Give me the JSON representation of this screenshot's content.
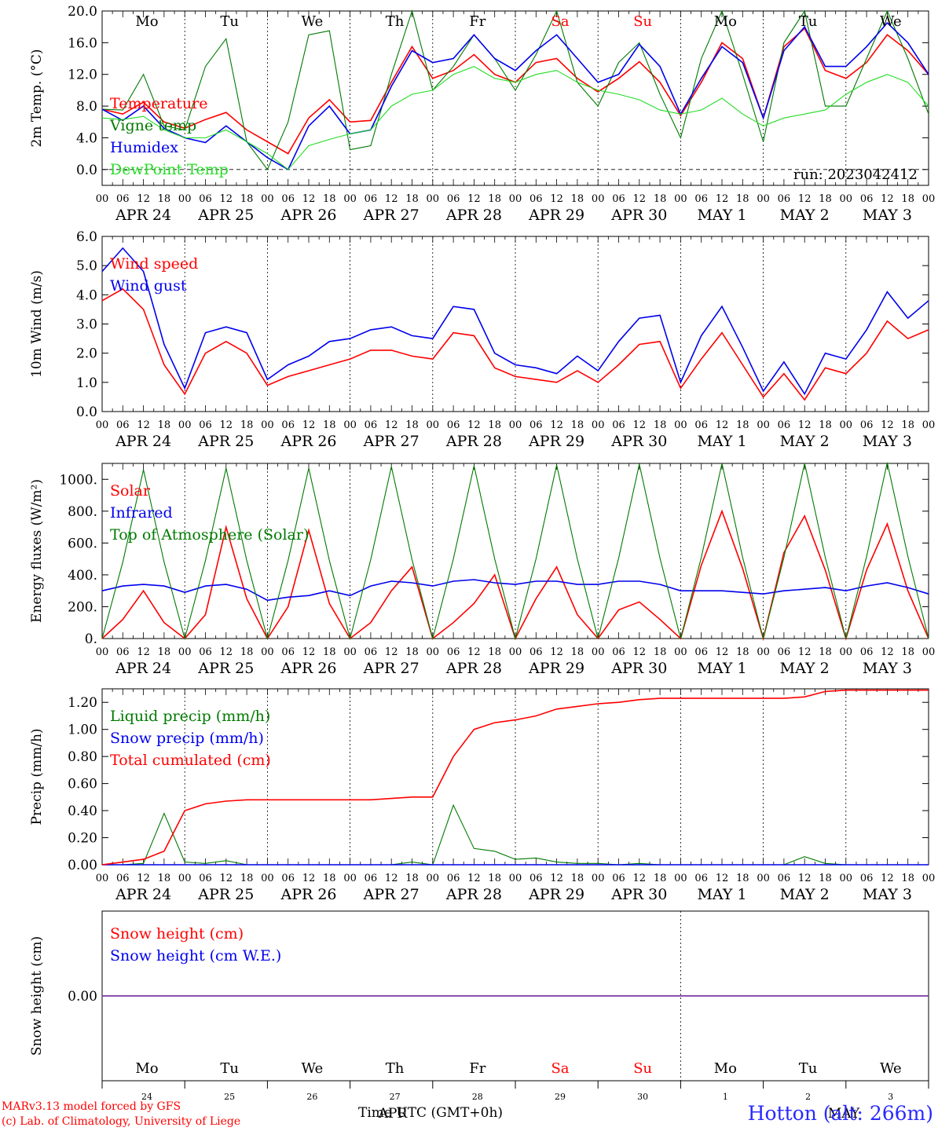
{
  "colors": {
    "red": "#ff0000",
    "green": "#007a00",
    "blue": "#0000ee",
    "lightgreen": "#22dd22",
    "purple": "#7a3aa0",
    "station": "#2a2aff"
  },
  "x_axis": {
    "days": [
      "APR 24",
      "APR 25",
      "APR 26",
      "APR 27",
      "APR 28",
      "APR 29",
      "APR 30",
      "MAY 1",
      "MAY 2",
      "MAY 3"
    ],
    "hour_ticks": [
      "00",
      "06",
      "12",
      "18",
      "00",
      "06",
      "12",
      "18",
      "00",
      "06",
      "12",
      "18",
      "00",
      "06",
      "12",
      "18",
      "00",
      "06",
      "12",
      "18",
      "00",
      "06",
      "12",
      "18",
      "00",
      "06",
      "12",
      "18",
      "00",
      "06",
      "12",
      "18",
      "00",
      "06",
      "12",
      "18",
      "00",
      "06",
      "12",
      "18",
      "00"
    ]
  },
  "weekdays": [
    {
      "label": "Mo",
      "weekend": false
    },
    {
      "label": "Tu",
      "weekend": false
    },
    {
      "label": "We",
      "weekend": false
    },
    {
      "label": "Th",
      "weekend": false
    },
    {
      "label": "Fr",
      "weekend": false
    },
    {
      "label": "Sa",
      "weekend": true
    },
    {
      "label": "Su",
      "weekend": true
    },
    {
      "label": "Mo",
      "weekend": false
    },
    {
      "label": "Tu",
      "weekend": false
    },
    {
      "label": "We",
      "weekend": false
    }
  ],
  "bottom_day_numbers": [
    "24",
    "25",
    "26",
    "27",
    "28",
    "29",
    "30",
    "1",
    "2",
    "3"
  ],
  "run_label": "run: 2023042412",
  "time_axis_label": "Time UTC (GMT+0h)",
  "month_labels": [
    "APR",
    "MAY"
  ],
  "footer": {
    "line1": "MARv3.13 model forced by GFS",
    "line2": "(c) Lab. of Climatology, University of Liege"
  },
  "station": "Hotton (alt: 266m)",
  "chart_data": [
    {
      "type": "line",
      "ylabel": "2m Temp. (°C)",
      "ylim": [
        -2,
        20
      ],
      "yticks": [
        "0.0",
        "4.0",
        "8.0",
        "12.0",
        "16.0",
        "20.0"
      ],
      "x_hours": [
        0,
        6,
        12,
        18,
        24,
        30,
        36,
        42,
        48,
        54,
        60,
        66,
        72,
        78,
        84,
        90,
        96,
        102,
        108,
        114,
        120,
        126,
        132,
        138,
        144,
        150,
        156,
        162,
        168,
        174,
        180,
        186,
        192,
        198,
        204,
        210,
        216,
        222,
        228,
        234,
        240
      ],
      "series": [
        {
          "name": "Temperature",
          "color": "red",
          "values": [
            7.6,
            7.0,
            8.5,
            6.0,
            5.2,
            6.3,
            7.2,
            5.0,
            3.5,
            2.0,
            6.5,
            8.8,
            6.0,
            6.2,
            11.0,
            15.5,
            11.5,
            12.5,
            14.5,
            12.0,
            11.0,
            13.5,
            14.0,
            11.5,
            9.8,
            11.5,
            13.6,
            11.0,
            6.8,
            11.0,
            16.0,
            14.0,
            6.5,
            15.5,
            17.8,
            12.5,
            11.5,
            13.5,
            17.0,
            15.0,
            12.0
          ]
        },
        {
          "name": "Vigne temp",
          "color": "green",
          "values": [
            7.6,
            7.5,
            12.0,
            5.5,
            5.0,
            13.0,
            16.5,
            3.5,
            0.0,
            6.0,
            17.0,
            17.5,
            2.5,
            3.0,
            12.0,
            20.0,
            10.0,
            13.0,
            17.0,
            14.0,
            10.0,
            14.5,
            20.0,
            11.0,
            8.0,
            13.5,
            16.0,
            9.5,
            4.0,
            14.0,
            20.0,
            12.0,
            3.5,
            16.0,
            20.0,
            8.0,
            8.0,
            14.0,
            20.0,
            14.0,
            7.0
          ]
        },
        {
          "name": "Humidex",
          "color": "blue",
          "values": [
            7.6,
            6.2,
            8.0,
            5.2,
            4.0,
            3.4,
            5.5,
            3.5,
            1.5,
            0.0,
            5.5,
            8.0,
            4.5,
            5.0,
            10.5,
            15.0,
            13.5,
            14.0,
            17.0,
            14.0,
            12.5,
            15.0,
            17.0,
            14.0,
            11.0,
            12.0,
            15.8,
            13.0,
            7.0,
            11.5,
            15.5,
            13.5,
            6.5,
            15.0,
            18.0,
            13.0,
            13.0,
            15.5,
            18.5,
            16.0,
            12.0
          ]
        },
        {
          "name": "DewPoint Temp",
          "color": "lightgreen",
          "values": [
            6.5,
            6.3,
            6.7,
            5.0,
            4.0,
            4.0,
            5.0,
            3.5,
            2.0,
            0.0,
            3.0,
            3.8,
            4.5,
            5.0,
            8.0,
            9.5,
            10.0,
            12.0,
            13.0,
            11.5,
            11.0,
            12.0,
            12.5,
            11.0,
            10.0,
            9.5,
            8.8,
            7.5,
            7.0,
            7.5,
            9.0,
            7.0,
            5.5,
            6.5,
            7.0,
            7.5,
            9.5,
            11.0,
            12.0,
            11.0,
            8.0
          ]
        }
      ]
    },
    {
      "type": "line",
      "ylabel": "10m Wind (m/s)",
      "ylim": [
        0,
        6
      ],
      "yticks": [
        "0.0",
        "1.0",
        "2.0",
        "3.0",
        "4.0",
        "5.0",
        "6.0"
      ],
      "x_hours": [
        0,
        6,
        12,
        18,
        24,
        30,
        36,
        42,
        48,
        54,
        60,
        66,
        72,
        78,
        84,
        90,
        96,
        102,
        108,
        114,
        120,
        126,
        132,
        138,
        144,
        150,
        156,
        162,
        168,
        174,
        180,
        186,
        192,
        198,
        204,
        210,
        216,
        222,
        228,
        234,
        240
      ],
      "series": [
        {
          "name": "Wind speed",
          "color": "red",
          "values": [
            3.8,
            4.2,
            3.5,
            1.6,
            0.6,
            2.0,
            2.4,
            2.0,
            0.9,
            1.2,
            1.4,
            1.6,
            1.8,
            2.1,
            2.1,
            1.9,
            1.8,
            2.7,
            2.6,
            1.5,
            1.2,
            1.1,
            1.0,
            1.4,
            1.0,
            1.6,
            2.3,
            2.4,
            0.8,
            1.8,
            2.7,
            1.6,
            0.5,
            1.3,
            0.4,
            1.5,
            1.3,
            2.0,
            3.1,
            2.5,
            2.8
          ]
        },
        {
          "name": "Wind gust",
          "color": "blue",
          "values": [
            4.8,
            5.6,
            4.8,
            2.3,
            0.8,
            2.7,
            2.9,
            2.7,
            1.1,
            1.6,
            1.9,
            2.4,
            2.5,
            2.8,
            2.9,
            2.6,
            2.5,
            3.6,
            3.5,
            2.0,
            1.6,
            1.5,
            1.3,
            1.9,
            1.4,
            2.4,
            3.2,
            3.3,
            1.0,
            2.6,
            3.6,
            2.2,
            0.7,
            1.7,
            0.6,
            2.0,
            1.8,
            2.8,
            4.1,
            3.2,
            3.8
          ]
        }
      ]
    },
    {
      "type": "line",
      "ylabel": "Energy fluxes (W/m²)",
      "ylim": [
        0,
        1100
      ],
      "yticks": [
        "0.",
        "200.",
        "400.",
        "600.",
        "800.",
        "1000."
      ],
      "x_hours": [
        0,
        6,
        12,
        18,
        24,
        30,
        36,
        42,
        48,
        54,
        60,
        66,
        72,
        78,
        84,
        90,
        96,
        102,
        108,
        114,
        120,
        126,
        132,
        138,
        144,
        150,
        156,
        162,
        168,
        174,
        180,
        186,
        192,
        198,
        204,
        210,
        216,
        222,
        228,
        234,
        240
      ],
      "series": [
        {
          "name": "Solar",
          "color": "red",
          "values": [
            0,
            120,
            300,
            100,
            0,
            150,
            700,
            250,
            0,
            200,
            680,
            220,
            0,
            100,
            300,
            450,
            0,
            100,
            220,
            400,
            0,
            250,
            450,
            150,
            0,
            180,
            230,
            120,
            0,
            460,
            800,
            440,
            0,
            540,
            770,
            430,
            0,
            430,
            720,
            300,
            0
          ]
        },
        {
          "name": "Infrared",
          "color": "blue",
          "values": [
            300,
            330,
            340,
            330,
            290,
            330,
            340,
            310,
            240,
            260,
            270,
            300,
            270,
            330,
            360,
            350,
            330,
            360,
            370,
            350,
            340,
            360,
            360,
            340,
            340,
            360,
            360,
            340,
            300,
            300,
            300,
            290,
            280,
            300,
            310,
            320,
            300,
            330,
            350,
            320,
            280
          ]
        },
        {
          "name": "Top of Atmosphere (Solar)",
          "color": "green",
          "values": [
            0,
            480,
            1060,
            480,
            0,
            490,
            1070,
            490,
            0,
            490,
            1070,
            490,
            0,
            495,
            1080,
            495,
            0,
            500,
            1085,
            500,
            0,
            500,
            1090,
            500,
            0,
            505,
            1095,
            505,
            0,
            510,
            1100,
            510,
            0,
            510,
            1100,
            510,
            0,
            515,
            1105,
            515,
            0
          ]
        }
      ]
    },
    {
      "type": "line",
      "ylabel": "Precip (mm/h)",
      "ylim": [
        0,
        1.3
      ],
      "yticks": [
        "0.00",
        "0.20",
        "0.40",
        "0.60",
        "0.80",
        "1.00",
        "1.20"
      ],
      "x_hours": [
        0,
        6,
        12,
        18,
        24,
        30,
        36,
        42,
        48,
        54,
        60,
        66,
        72,
        78,
        84,
        90,
        96,
        102,
        108,
        114,
        120,
        126,
        132,
        138,
        144,
        150,
        156,
        162,
        168,
        174,
        180,
        186,
        192,
        198,
        204,
        210,
        216,
        222,
        228,
        234,
        240
      ],
      "series": [
        {
          "name": "Liquid precip (mm/h)",
          "color": "green",
          "values": [
            0,
            0,
            0.01,
            0.38,
            0.02,
            0.01,
            0.03,
            0,
            0,
            0,
            0,
            0,
            0,
            0,
            0,
            0.02,
            0,
            0.44,
            0.12,
            0.1,
            0.04,
            0.05,
            0.02,
            0.01,
            0.01,
            0,
            0.01,
            0,
            0,
            0,
            0,
            0,
            0,
            0,
            0.06,
            0.01,
            0,
            0,
            0,
            0,
            0
          ]
        },
        {
          "name": "Snow precip (mm/h)",
          "color": "blue",
          "values": [
            0,
            0,
            0,
            0,
            0,
            0,
            0,
            0,
            0,
            0,
            0,
            0,
            0,
            0,
            0,
            0,
            0,
            0,
            0,
            0,
            0,
            0,
            0,
            0,
            0,
            0,
            0,
            0,
            0,
            0,
            0,
            0,
            0,
            0,
            0,
            0,
            0,
            0,
            0,
            0,
            0
          ]
        },
        {
          "name": "Total cumulated (cm)",
          "color": "red",
          "values": [
            0,
            0.02,
            0.04,
            0.1,
            0.4,
            0.45,
            0.47,
            0.48,
            0.48,
            0.48,
            0.48,
            0.48,
            0.48,
            0.48,
            0.49,
            0.5,
            0.5,
            0.8,
            1.0,
            1.05,
            1.07,
            1.1,
            1.15,
            1.17,
            1.19,
            1.2,
            1.22,
            1.23,
            1.23,
            1.23,
            1.23,
            1.23,
            1.23,
            1.23,
            1.24,
            1.28,
            1.29,
            1.29,
            1.29,
            1.29,
            1.29
          ]
        }
      ]
    },
    {
      "type": "line",
      "ylabel": "Snow height (cm)",
      "ylim": [
        -1,
        1
      ],
      "yticks": [
        "0.00"
      ],
      "x_hours": [
        0,
        240
      ],
      "series": [
        {
          "name": "Snow height (cm)",
          "color": "red",
          "values": [
            0,
            0
          ]
        },
        {
          "name": "Snow height (cm W.E.)",
          "color": "blue",
          "values": [
            0,
            0
          ]
        }
      ]
    }
  ]
}
